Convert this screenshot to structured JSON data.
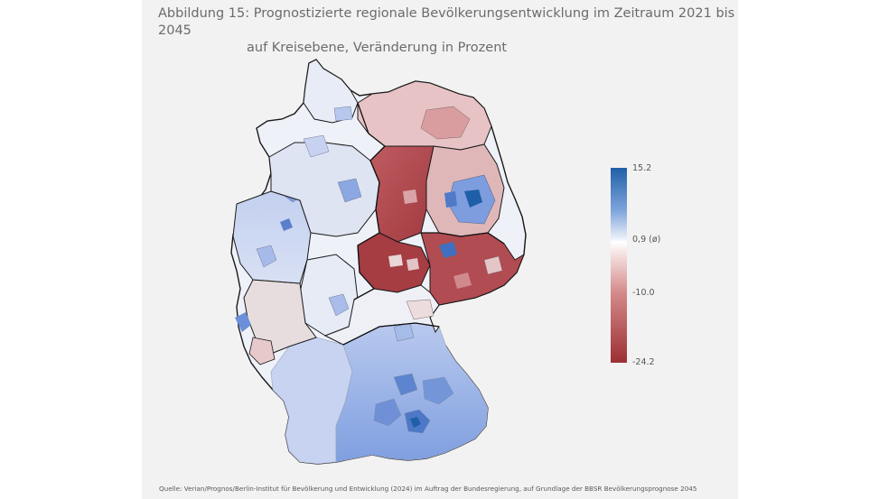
{
  "figure": {
    "title_line1": "Abbildung 15: Prognostizierte regionale Bevölkerungsentwicklung im Zeitraum 2021 bis 2045",
    "title_line2": "auf Kreisebene, Veränderung in Prozent"
  },
  "legend": {
    "max_label": "15.2",
    "mid_label": "0,9 (ø)",
    "low_label": "-10.0",
    "min_label": "-24.2",
    "max_value": 15.2,
    "mid_value": 0.9,
    "low_value": -10.0,
    "min_value": -24.2,
    "colors": {
      "max": "#1f5fa8",
      "mid": "#ffffff",
      "min": "#9c2f34"
    }
  },
  "source": "Quelle: Verian/Prognos/Berlin-Institut für Bevölkerung und Entwicklung (2024) im Auftrag der Bundesregierung, auf Grundlage der BBSR Bevölkerungsprognose 2045"
}
